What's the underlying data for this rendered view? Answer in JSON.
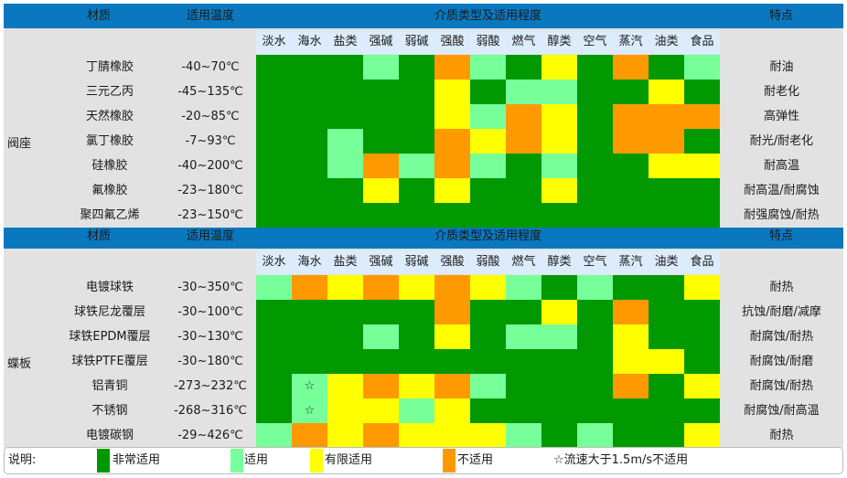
{
  "colors": {
    "G": "#009900",
    "L": "#77ff99",
    "Y": "#ffff00",
    "O": "#ff9900"
  },
  "header": {
    "material": "材质",
    "temp": "适用温度",
    "media_title": "介质类型及适用程度",
    "feature": "特点"
  },
  "media": [
    "淡水",
    "海水",
    "盐类",
    "强碱",
    "弱碱",
    "强酸",
    "弱酸",
    "燃气",
    "醇类",
    "空气",
    "蒸汽",
    "油类",
    "食品"
  ],
  "sections": [
    {
      "group": "阀座",
      "rows": [
        {
          "name": "丁腈橡胶",
          "temp": "-40~70℃",
          "feature": "耐油",
          "cells": [
            "G",
            "G",
            "G",
            "L",
            "G",
            "O",
            "L",
            "G",
            "Y",
            "G",
            "O",
            "G",
            "L"
          ]
        },
        {
          "name": "三元乙丙",
          "temp": "-45~135℃",
          "feature": "耐老化",
          "cells": [
            "G",
            "G",
            "G",
            "G",
            "G",
            "Y",
            "G",
            "L",
            "L",
            "G",
            "G",
            "Y",
            "G"
          ]
        },
        {
          "name": "天然橡胶",
          "temp": "-20~85℃",
          "feature": "高弹性",
          "cells": [
            "G",
            "G",
            "G",
            "G",
            "G",
            "Y",
            "L",
            "O",
            "Y",
            "G",
            "O",
            "O",
            "O"
          ]
        },
        {
          "name": "氯丁橡胶",
          "temp": "-7~93℃",
          "feature": "耐光/耐老化",
          "cells": [
            "G",
            "G",
            "L",
            "G",
            "G",
            "O",
            "Y",
            "O",
            "Y",
            "G",
            "O",
            "O",
            "G"
          ]
        },
        {
          "name": "硅橡胶",
          "temp": "-40~200℃",
          "feature": "耐高温",
          "cells": [
            "G",
            "G",
            "L",
            "O",
            "L",
            "O",
            "L",
            "G",
            "L",
            "G",
            "G",
            "Y",
            "Y"
          ]
        },
        {
          "name": "氟橡胶",
          "temp": "-23~180℃",
          "feature": "耐高温/耐腐蚀",
          "cells": [
            "G",
            "G",
            "G",
            "Y",
            "G",
            "Y",
            "G",
            "G",
            "Y",
            "G",
            "G",
            "G",
            "G"
          ]
        },
        {
          "name": "聚四氟乙烯",
          "temp": "-23~150℃",
          "feature": "耐强腐蚀/耐热",
          "cells": [
            "G",
            "G",
            "G",
            "G",
            "G",
            "G",
            "G",
            "G",
            "G",
            "G",
            "G",
            "G",
            "G"
          ]
        }
      ]
    },
    {
      "group": "蝶板",
      "rows": [
        {
          "name": "电镀球铁",
          "temp": "-30~350℃",
          "feature": "耐热",
          "cells": [
            "L",
            "O",
            "Y",
            "O",
            "Y",
            "O",
            "Y",
            "L",
            "G",
            "L",
            "G",
            "G",
            "Y"
          ]
        },
        {
          "name": "球铁尼龙覆层",
          "temp": "-30~100℃",
          "feature": "抗蚀/耐磨/减摩",
          "cells": [
            "G",
            "G",
            "G",
            "G",
            "G",
            "O",
            "G",
            "G",
            "Y",
            "G",
            "O",
            "G",
            "G"
          ]
        },
        {
          "name": "球铁EPDM覆层",
          "temp": "-30~130℃",
          "feature": "耐腐蚀/耐热",
          "cells": [
            "G",
            "G",
            "G",
            "L",
            "G",
            "Y",
            "G",
            "L",
            "L",
            "G",
            "Y",
            "G",
            "G"
          ]
        },
        {
          "name": "球铁PTFE覆层",
          "temp": "-30~180℃",
          "feature": "耐腐蚀/耐磨",
          "cells": [
            "G",
            "G",
            "G",
            "G",
            "G",
            "G",
            "G",
            "G",
            "G",
            "G",
            "Y",
            "Y",
            "G"
          ]
        },
        {
          "name": "铝青铜",
          "temp": "-273~232℃",
          "feature": "耐腐蚀/耐热",
          "cells": [
            "G",
            "L",
            "Y",
            "O",
            "Y",
            "O",
            "L",
            "G",
            "G",
            "G",
            "O",
            "G",
            "Y"
          ]
        },
        {
          "name": "不锈钢",
          "temp": "-268~316℃",
          "feature": "耐腐蚀/耐高温",
          "cells": [
            "G",
            "L",
            "Y",
            "Y",
            "L",
            "Y",
            "G",
            "G",
            "G",
            "G",
            "G",
            "G",
            "G"
          ]
        },
        {
          "name": "电镀碳钢",
          "temp": "-29~426℃",
          "feature": "耐热",
          "cells": [
            "L",
            "O",
            "Y",
            "O",
            "Y",
            "Y",
            "Y",
            "L",
            "G",
            "L",
            "G",
            "G",
            "Y"
          ]
        }
      ],
      "star_cells": [
        [
          4,
          1
        ],
        [
          5,
          1
        ]
      ],
      "star_symbol": "☆"
    }
  ],
  "legend": {
    "title": "说明:",
    "items": [
      {
        "code": "G",
        "label": "非常适用"
      },
      {
        "code": "L",
        "label": "适用"
      },
      {
        "code": "Y",
        "label": "有限适用"
      },
      {
        "code": "O",
        "label": "不适用"
      }
    ],
    "note": "☆流速大于1.5m/s不适用"
  }
}
